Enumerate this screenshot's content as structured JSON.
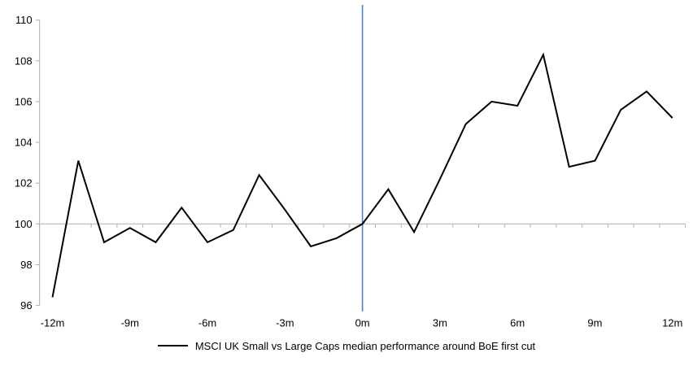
{
  "chart_data": {
    "type": "line",
    "title": "",
    "xlabel": "",
    "ylabel": "",
    "x": [
      -12,
      -11,
      -10,
      -9,
      -8,
      -7,
      -6,
      -5,
      -4,
      -3,
      -2,
      -1,
      0,
      1,
      2,
      3,
      4,
      5,
      6,
      7,
      8,
      9,
      10,
      11,
      12
    ],
    "series": [
      {
        "name": "MSCI UK Small vs Large Caps median performance around BoE first cut",
        "values": [
          96.4,
          103.1,
          99.1,
          99.8,
          99.1,
          100.8,
          99.1,
          99.7,
          102.4,
          100.7,
          98.9,
          99.3,
          100.0,
          101.7,
          99.6,
          102.2,
          104.9,
          106.0,
          105.8,
          108.3,
          102.8,
          103.1,
          105.6,
          106.5,
          105.2
        ],
        "color": "#000000",
        "stroke_width": 2
      }
    ],
    "ylim": [
      96,
      110
    ],
    "y_ticks": [
      96,
      98,
      100,
      102,
      104,
      106,
      108,
      110
    ],
    "y_tick_labels": [
      "96",
      "98",
      "100",
      "102",
      "104",
      "106",
      "108",
      "110"
    ],
    "x_tick_months": [
      -12,
      -9,
      -6,
      -3,
      0,
      3,
      6,
      9,
      12
    ],
    "x_tick_labels": [
      "-12m",
      "-9m",
      "-6m",
      "-3m",
      "0m",
      "3m",
      "6m",
      "9m",
      "12m"
    ],
    "x_minor_tick_every_months": 1,
    "axis_crosses_at": 100,
    "grid": "off",
    "legend_position": "bottom",
    "event_line": {
      "x": 0,
      "color": "#4f81bd"
    },
    "axis_color": "#b0b0b0",
    "text_color": "#000000"
  },
  "legend": {
    "label": "MSCI UK Small vs Large Caps median performance around BoE first cut"
  }
}
